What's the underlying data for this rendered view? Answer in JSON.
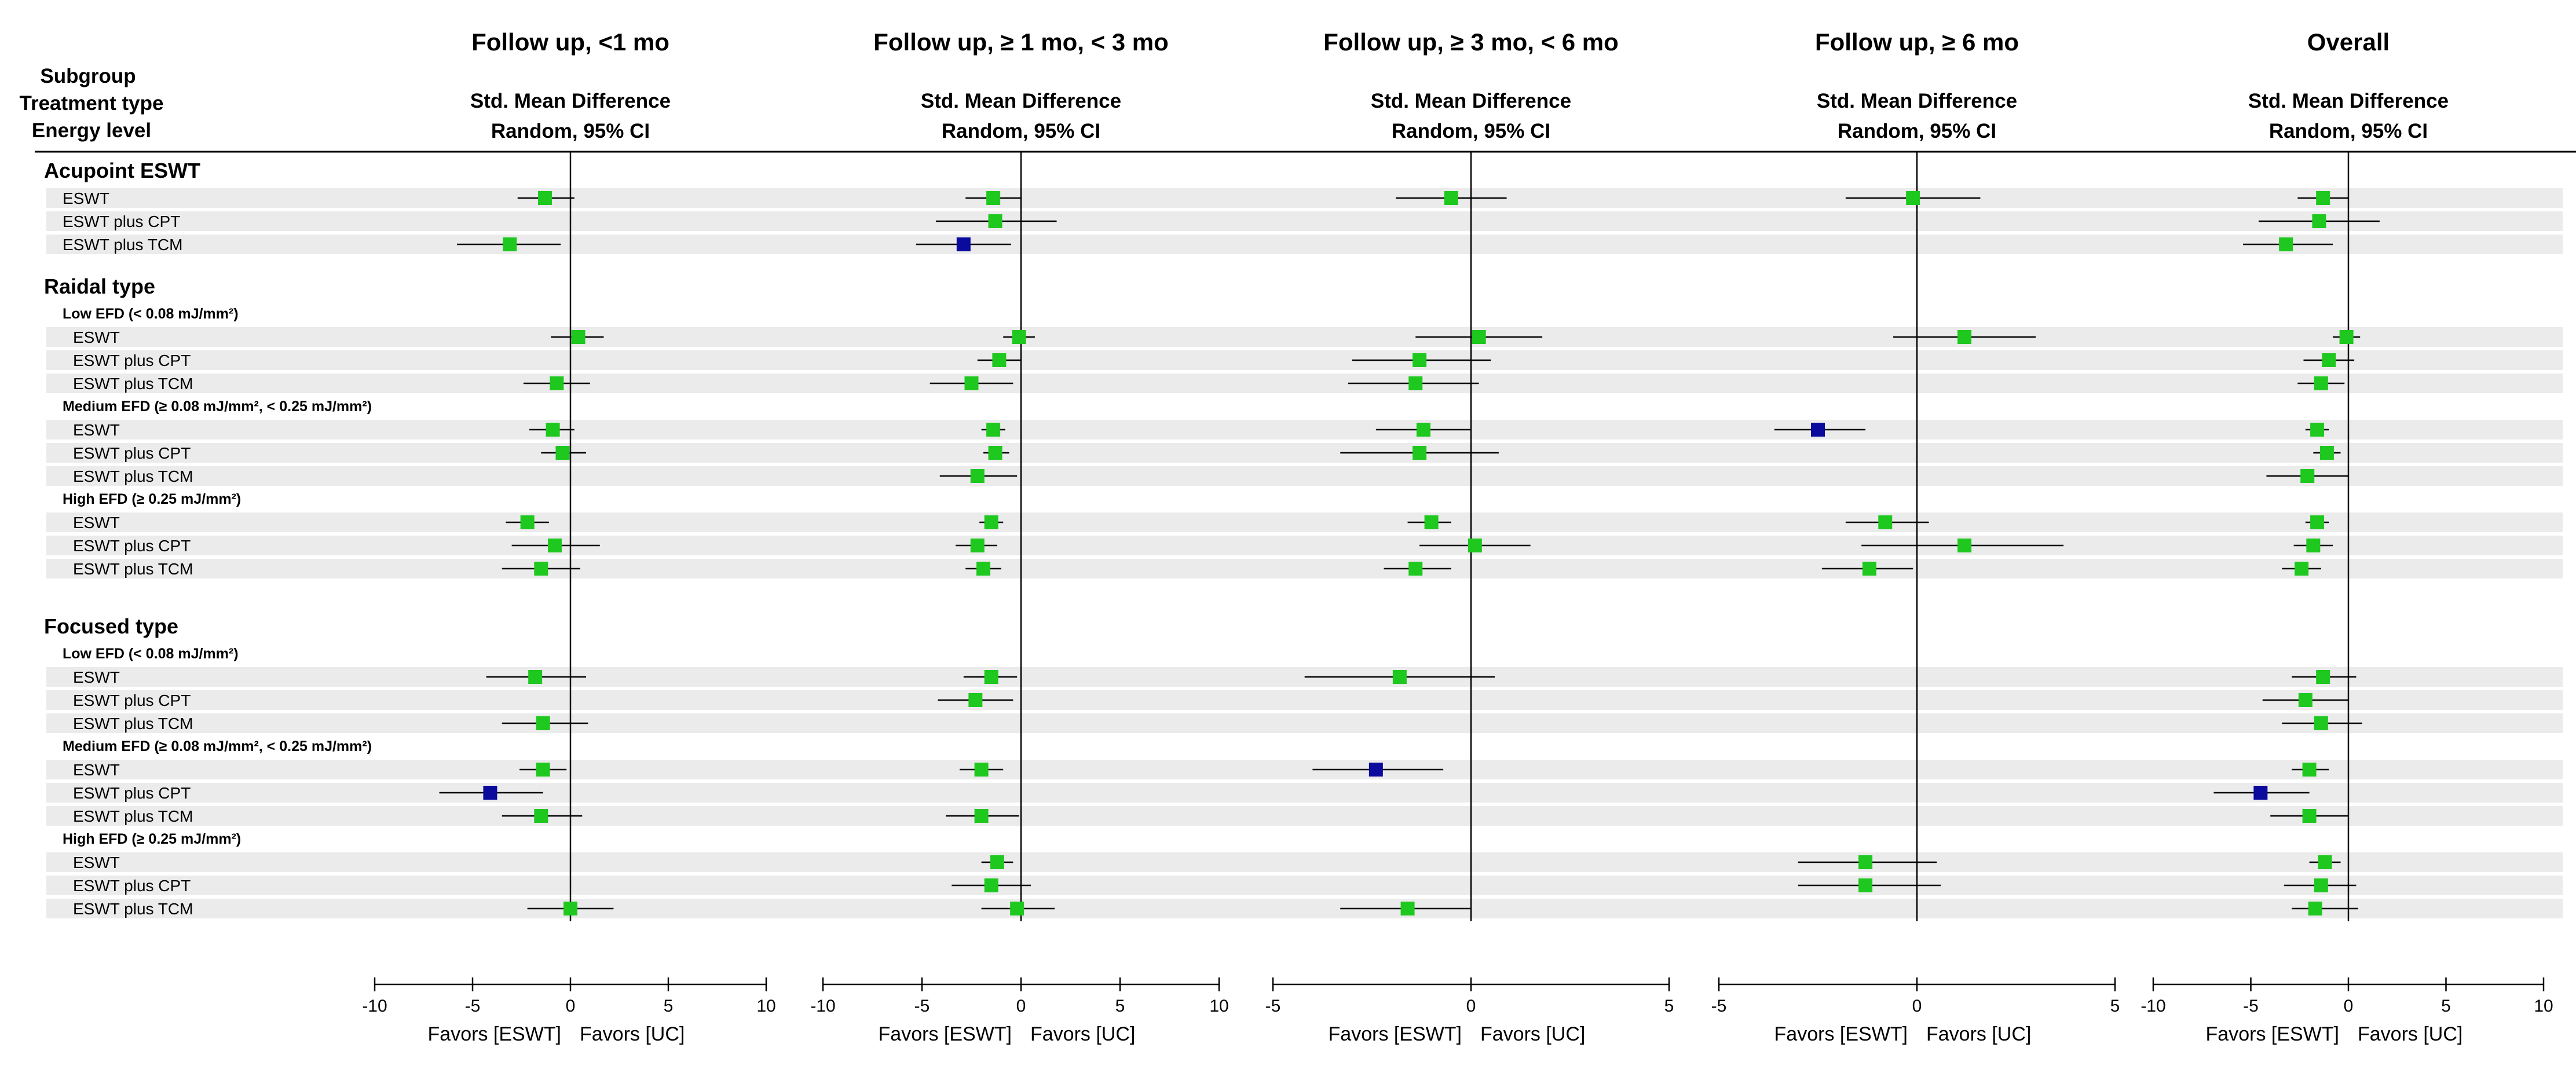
{
  "chart_data": {
    "type": "forest",
    "header_left": [
      "Subgroup",
      "Treatment type",
      "Energy level"
    ],
    "colors": {
      "normal": "#1ec81e",
      "outlier": "#0a0a9c",
      "stripe": "#ebebeb",
      "line": "#000000"
    },
    "groups": [
      {
        "title": "Acupoint ESWT",
        "subgroups": [
          {
            "label": "",
            "rows": [
              "ESWT",
              "ESWT plus CPT",
              "ESWT plus TCM"
            ]
          }
        ]
      },
      {
        "title": "Raidal type",
        "subgroups": [
          {
            "label": "Low EFD (< 0.08 mJ/mm²)",
            "rows": [
              "ESWT",
              "ESWT plus CPT",
              "ESWT plus TCM"
            ]
          },
          {
            "label": "Medium EFD (≥ 0.08 mJ/mm², < 0.25 mJ/mm²)",
            "rows": [
              "ESWT",
              "ESWT plus CPT",
              "ESWT plus TCM"
            ]
          },
          {
            "label": "High EFD (≥ 0.25 mJ/mm²)",
            "rows": [
              "ESWT",
              "ESWT plus CPT",
              "ESWT plus TCM"
            ]
          }
        ]
      },
      {
        "title": "Focused type",
        "subgroups": [
          {
            "label": "Low EFD (< 0.08 mJ/mm²)",
            "rows": [
              "ESWT",
              "ESWT plus CPT",
              "ESWT plus TCM"
            ]
          },
          {
            "label": "Medium EFD (≥ 0.08 mJ/mm², < 0.25 mJ/mm²)",
            "rows": [
              "ESWT",
              "ESWT plus CPT",
              "ESWT plus TCM"
            ]
          },
          {
            "label": "High EFD (≥ 0.25 mJ/mm²)",
            "rows": [
              "ESWT",
              "ESWT plus CPT",
              "ESWT plus TCM"
            ]
          }
        ]
      }
    ],
    "panels": [
      {
        "title": "Follow up, <1 mo",
        "header1": "Std. Mean Difference",
        "header2": "Random, 95% CI",
        "xlim": [
          -10,
          10
        ],
        "ticks": [
          -10,
          -5,
          0,
          5,
          10
        ],
        "favors_left": "Favors [ESWT]",
        "favors_right": "Favors [UC]",
        "estimates": [
          {
            "est": -1.3,
            "lo": -2.7,
            "hi": 0.2,
            "outlier": false
          },
          null,
          {
            "est": -3.1,
            "lo": -5.8,
            "hi": -0.5,
            "outlier": false
          },
          {
            "est": 0.4,
            "lo": -1.0,
            "hi": 1.7,
            "outlier": false
          },
          null,
          {
            "est": -0.7,
            "lo": -2.4,
            "hi": 1.0,
            "outlier": false
          },
          {
            "est": -0.9,
            "lo": -2.1,
            "hi": 0.2,
            "outlier": false
          },
          {
            "est": -0.4,
            "lo": -1.5,
            "hi": 0.8,
            "outlier": false
          },
          null,
          {
            "est": -2.2,
            "lo": -3.3,
            "hi": -1.1,
            "outlier": false
          },
          {
            "est": -0.8,
            "lo": -3.0,
            "hi": 1.5,
            "outlier": false
          },
          {
            "est": -1.5,
            "lo": -3.5,
            "hi": 0.5,
            "outlier": false
          },
          {
            "est": -1.8,
            "lo": -4.3,
            "hi": 0.8,
            "outlier": false
          },
          null,
          {
            "est": -1.4,
            "lo": -3.5,
            "hi": 0.9,
            "outlier": false
          },
          {
            "est": -1.4,
            "lo": -2.6,
            "hi": -0.2,
            "outlier": false
          },
          {
            "est": -4.1,
            "lo": -6.7,
            "hi": -1.4,
            "outlier": true
          },
          {
            "est": -1.5,
            "lo": -3.5,
            "hi": 0.6,
            "outlier": false
          },
          null,
          null,
          {
            "est": 0.0,
            "lo": -2.2,
            "hi": 2.2,
            "outlier": false
          }
        ]
      },
      {
        "title": "Follow up, ≥ 1 mo, < 3 mo",
        "header1": "Std. Mean Difference",
        "header2": "Random, 95% CI",
        "xlim": [
          -10,
          10
        ],
        "ticks": [
          -10,
          -5,
          0,
          5,
          10
        ],
        "favors_left": "Favors [ESWT]",
        "favors_right": "Favors [UC]",
        "estimates": [
          {
            "est": -1.4,
            "lo": -2.8,
            "hi": 0.0,
            "outlier": false
          },
          {
            "est": -1.3,
            "lo": -4.3,
            "hi": 1.8,
            "outlier": false
          },
          {
            "est": -2.9,
            "lo": -5.3,
            "hi": -0.5,
            "outlier": true
          },
          {
            "est": -0.1,
            "lo": -0.9,
            "hi": 0.7,
            "outlier": false
          },
          {
            "est": -1.1,
            "lo": -2.2,
            "hi": 0.0,
            "outlier": false
          },
          {
            "est": -2.5,
            "lo": -4.6,
            "hi": -0.4,
            "outlier": false
          },
          {
            "est": -1.4,
            "lo": -2.0,
            "hi": -0.8,
            "outlier": false
          },
          {
            "est": -1.3,
            "lo": -1.9,
            "hi": -0.6,
            "outlier": false
          },
          {
            "est": -2.2,
            "lo": -4.1,
            "hi": -0.2,
            "outlier": false
          },
          {
            "est": -1.5,
            "lo": -2.1,
            "hi": -0.9,
            "outlier": false
          },
          {
            "est": -2.2,
            "lo": -3.3,
            "hi": -1.2,
            "outlier": false
          },
          {
            "est": -1.9,
            "lo": -2.8,
            "hi": -1.0,
            "outlier": false
          },
          {
            "est": -1.5,
            "lo": -2.9,
            "hi": -0.2,
            "outlier": false
          },
          {
            "est": -2.3,
            "lo": -4.2,
            "hi": -0.4,
            "outlier": false
          },
          null,
          {
            "est": -2.0,
            "lo": -3.1,
            "hi": -0.9,
            "outlier": false
          },
          null,
          {
            "est": -2.0,
            "lo": -3.8,
            "hi": -0.1,
            "outlier": false
          },
          {
            "est": -1.2,
            "lo": -2.0,
            "hi": -0.4,
            "outlier": false
          },
          {
            "est": -1.5,
            "lo": -3.5,
            "hi": 0.5,
            "outlier": false
          },
          {
            "est": -0.2,
            "lo": -2.0,
            "hi": 1.7,
            "outlier": false
          }
        ]
      },
      {
        "title": "Follow up, ≥ 3 mo, < 6 mo",
        "header1": "Std. Mean Difference",
        "header2": "Random, 95% CI",
        "xlim": [
          -5,
          5
        ],
        "ticks": [
          -5,
          0,
          5
        ],
        "favors_left": "Favors [ESWT]",
        "favors_right": "Favors [UC]",
        "estimates": [
          {
            "est": -0.5,
            "lo": -1.9,
            "hi": 0.9,
            "outlier": false
          },
          null,
          null,
          {
            "est": 0.2,
            "lo": -1.4,
            "hi": 1.8,
            "outlier": false
          },
          {
            "est": -1.3,
            "lo": -3.0,
            "hi": 0.5,
            "outlier": false
          },
          {
            "est": -1.4,
            "lo": -3.1,
            "hi": 0.2,
            "outlier": false
          },
          {
            "est": -1.2,
            "lo": -2.4,
            "hi": 0.0,
            "outlier": false
          },
          {
            "est": -1.3,
            "lo": -3.3,
            "hi": 0.7,
            "outlier": false
          },
          null,
          {
            "est": -1.0,
            "lo": -1.6,
            "hi": -0.5,
            "outlier": false
          },
          {
            "est": 0.1,
            "lo": -1.3,
            "hi": 1.5,
            "outlier": false
          },
          {
            "est": -1.4,
            "lo": -2.2,
            "hi": -0.5,
            "outlier": false
          },
          {
            "est": -1.8,
            "lo": -4.2,
            "hi": 0.6,
            "outlier": false
          },
          null,
          null,
          {
            "est": -2.4,
            "lo": -4.0,
            "hi": -0.7,
            "outlier": true
          },
          null,
          null,
          null,
          null,
          {
            "est": -1.6,
            "lo": -3.3,
            "hi": 0.0,
            "outlier": false
          }
        ]
      },
      {
        "title": "Follow up, ≥ 6 mo",
        "header1": "Std. Mean Difference",
        "header2": "Random, 95% CI",
        "xlim": [
          -5,
          5
        ],
        "ticks": [
          -5,
          0,
          5
        ],
        "favors_left": "Favors [ESWT]",
        "favors_right": "Favors [UC]",
        "estimates": [
          {
            "est": -0.1,
            "lo": -1.8,
            "hi": 1.6,
            "outlier": false
          },
          null,
          null,
          {
            "est": 1.2,
            "lo": -0.6,
            "hi": 3.0,
            "outlier": false
          },
          null,
          null,
          {
            "est": -2.5,
            "lo": -3.6,
            "hi": -1.3,
            "outlier": true
          },
          null,
          null,
          {
            "est": -0.8,
            "lo": -1.8,
            "hi": 0.3,
            "outlier": false
          },
          {
            "est": 1.2,
            "lo": -1.4,
            "hi": 3.7,
            "outlier": false
          },
          {
            "est": -1.2,
            "lo": -2.4,
            "hi": -0.1,
            "outlier": false
          },
          null,
          null,
          null,
          null,
          null,
          null,
          {
            "est": -1.3,
            "lo": -3.0,
            "hi": 0.5,
            "outlier": false
          },
          {
            "est": -1.3,
            "lo": -3.0,
            "hi": 0.6,
            "outlier": false
          },
          null
        ]
      },
      {
        "title": "Overall",
        "header1": "Std. Mean Difference",
        "header2": "Random, 95% CI",
        "xlim": [
          -10,
          10
        ],
        "ticks": [
          -10,
          -5,
          0,
          5,
          10
        ],
        "favors_left": "Favors [ESWT]",
        "favors_right": "Favors [UC]",
        "estimates": [
          {
            "est": -1.3,
            "lo": -2.6,
            "hi": 0.0,
            "outlier": false
          },
          {
            "est": -1.5,
            "lo": -4.6,
            "hi": 1.6,
            "outlier": false
          },
          {
            "est": -3.2,
            "lo": -5.4,
            "hi": -0.8,
            "outlier": false
          },
          {
            "est": -0.1,
            "lo": -0.8,
            "hi": 0.6,
            "outlier": false
          },
          {
            "est": -1.0,
            "lo": -2.3,
            "hi": 0.3,
            "outlier": false
          },
          {
            "est": -1.4,
            "lo": -2.6,
            "hi": -0.2,
            "outlier": false
          },
          {
            "est": -1.6,
            "lo": -2.2,
            "hi": -1.0,
            "outlier": false
          },
          {
            "est": -1.1,
            "lo": -1.8,
            "hi": -0.4,
            "outlier": false
          },
          {
            "est": -2.1,
            "lo": -4.2,
            "hi": 0.0,
            "outlier": false
          },
          {
            "est": -1.6,
            "lo": -2.2,
            "hi": -1.0,
            "outlier": false
          },
          {
            "est": -1.8,
            "lo": -2.8,
            "hi": -0.8,
            "outlier": false
          },
          {
            "est": -2.4,
            "lo": -3.4,
            "hi": -1.4,
            "outlier": false
          },
          {
            "est": -1.3,
            "lo": -2.9,
            "hi": 0.4,
            "outlier": false
          },
          {
            "est": -2.2,
            "lo": -4.4,
            "hi": 0.0,
            "outlier": false
          },
          {
            "est": -1.4,
            "lo": -3.4,
            "hi": 0.7,
            "outlier": false
          },
          {
            "est": -2.0,
            "lo": -2.9,
            "hi": -1.0,
            "outlier": false
          },
          {
            "est": -4.5,
            "lo": -6.9,
            "hi": -2.0,
            "outlier": true
          },
          {
            "est": -2.0,
            "lo": -4.0,
            "hi": 0.0,
            "outlier": false
          },
          {
            "est": -1.2,
            "lo": -2.0,
            "hi": -0.4,
            "outlier": false
          },
          {
            "est": -1.4,
            "lo": -3.3,
            "hi": 0.4,
            "outlier": false
          },
          {
            "est": -1.7,
            "lo": -2.9,
            "hi": 0.5,
            "outlier": false
          }
        ]
      }
    ]
  }
}
